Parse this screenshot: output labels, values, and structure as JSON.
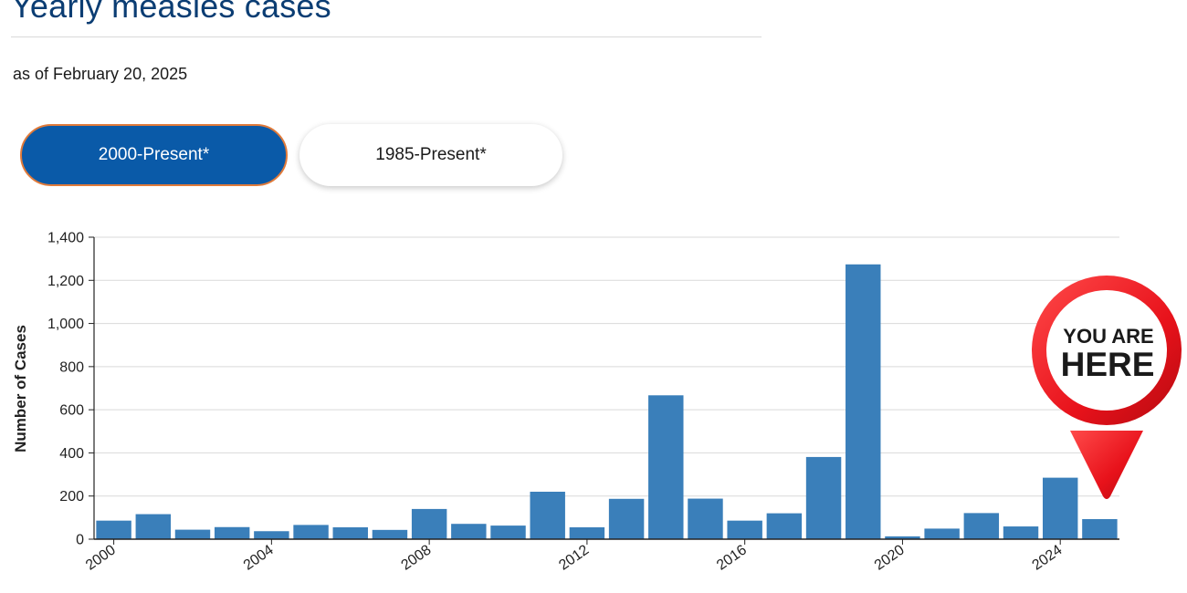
{
  "page": {
    "title": "Yearly measles cases",
    "subtitle": "as of February 20, 2025"
  },
  "range_buttons": [
    {
      "label": "2000-Present*",
      "active": true
    },
    {
      "label": "1985-Present*",
      "active": false
    }
  ],
  "colors": {
    "bar": "#3a7fba",
    "title": "#0b3d73",
    "active_button": "#0a5aa8",
    "active_button_border": "#e07a3a",
    "pin": "#e8121b"
  },
  "marker": {
    "line1": "YOU ARE",
    "line2": "HERE",
    "category": "2025"
  },
  "chart_data": {
    "type": "bar",
    "title": "",
    "xlabel": "",
    "ylabel": "Number of Cases",
    "ylim": [
      0,
      1400
    ],
    "yticks": [
      0,
      200,
      400,
      600,
      800,
      1000,
      1200,
      1400
    ],
    "ytick_labels": [
      "0",
      "200",
      "400",
      "600",
      "800",
      "1,000",
      "1,200",
      "1,400"
    ],
    "xtick_labels": [
      "2000",
      "2004",
      "2008",
      "2012",
      "2016",
      "2020",
      "2024"
    ],
    "grid": true,
    "categories": [
      "2000",
      "2001",
      "2002",
      "2003",
      "2004",
      "2005",
      "2006",
      "2007",
      "2008",
      "2009",
      "2010",
      "2011",
      "2012",
      "2013",
      "2014",
      "2015",
      "2016",
      "2017",
      "2018",
      "2019",
      "2020",
      "2021",
      "2022",
      "2023",
      "2024",
      "2025"
    ],
    "values": [
      86,
      116,
      44,
      56,
      37,
      66,
      55,
      43,
      140,
      71,
      63,
      220,
      55,
      187,
      667,
      188,
      86,
      120,
      381,
      1274,
      13,
      49,
      121,
      59,
      285,
      93
    ]
  }
}
